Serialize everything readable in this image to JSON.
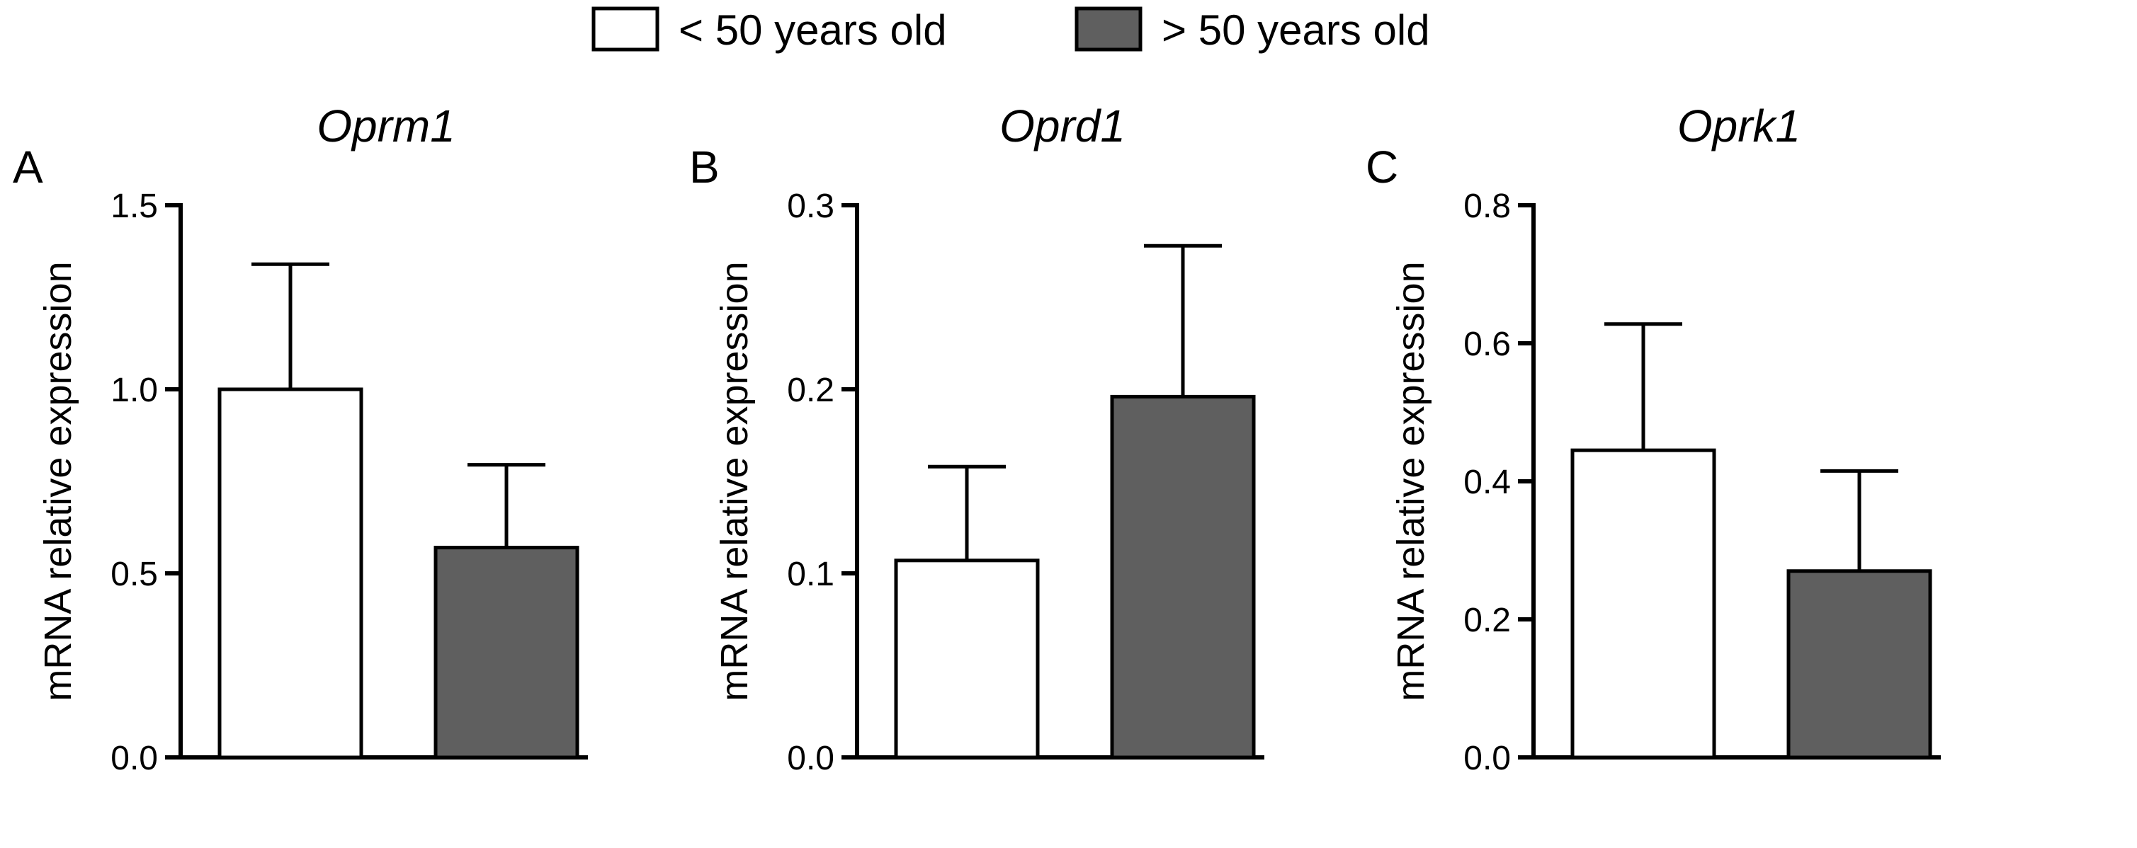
{
  "chart_data": {
    "type": "bar",
    "legend": {
      "placement": "top-center",
      "entries": [
        {
          "name": "< 50 years old",
          "color": "#ffffff"
        },
        {
          "name": "> 50 years old",
          "color": "#5f5f5f"
        }
      ]
    },
    "panels": [
      {
        "letter": "A",
        "title": "Oprm1",
        "ylabel": "mRNA relative expression",
        "ylim": [
          0,
          1.5
        ],
        "yticks": [
          0.0,
          0.5,
          1.0,
          1.5
        ],
        "ytick_labels": [
          "0.0",
          "0.5",
          "1.0",
          "1.5"
        ],
        "series": [
          {
            "name": "< 50 years old",
            "value": 1.0,
            "error": 0.34
          },
          {
            "name": "> 50 years old",
            "value": 0.57,
            "error": 0.225
          }
        ]
      },
      {
        "letter": "B",
        "title": "Oprd1",
        "ylabel": "mRNA relative expression",
        "ylim": [
          0,
          0.3
        ],
        "yticks": [
          0.0,
          0.1,
          0.2,
          0.3
        ],
        "ytick_labels": [
          "0.0",
          "0.1",
          "0.2",
          "0.3"
        ],
        "series": [
          {
            "name": "< 50 years old",
            "value": 0.107,
            "error": 0.051
          },
          {
            "name": "> 50 years old",
            "value": 0.196,
            "error": 0.082
          }
        ]
      },
      {
        "letter": "C",
        "title": "Oprk1",
        "ylabel": "mRNA relative expression",
        "ylim": [
          0,
          0.8
        ],
        "yticks": [
          0.0,
          0.2,
          0.4,
          0.6,
          0.8
        ],
        "ytick_labels": [
          "0.0",
          "0.2",
          "0.4",
          "0.6",
          "0.8"
        ],
        "series": [
          {
            "name": "< 50 years old",
            "value": 0.445,
            "error": 0.183
          },
          {
            "name": "> 50 years old",
            "value": 0.27,
            "error": 0.145
          }
        ]
      }
    ]
  }
}
